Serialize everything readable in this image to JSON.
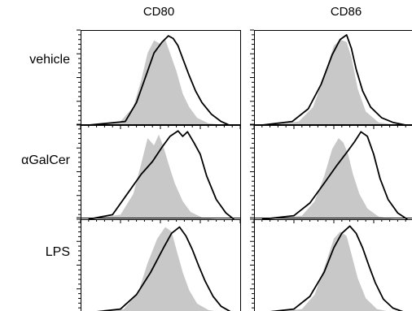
{
  "chart_data": {
    "type": "area",
    "columns": [
      "CD80",
      "CD86"
    ],
    "rows": [
      "vehicle",
      "αGalCer",
      "LPS"
    ],
    "colors": {
      "control_fill": "#c8c8c8",
      "treated_line": "#000000"
    },
    "grid": false,
    "x_domain": [
      0,
      1
    ],
    "y_domain": [
      0,
      1
    ],
    "panels": [
      {
        "row": "vehicle",
        "column": "CD80",
        "series": [
          {
            "style": "filled",
            "x": [
              0.05,
              0.25,
              0.33,
              0.38,
              0.42,
              0.46,
              0.5,
              0.53,
              0.56,
              0.6,
              0.64,
              0.68,
              0.73,
              0.8,
              0.9
            ],
            "y": [
              0,
              0.04,
              0.2,
              0.5,
              0.8,
              0.94,
              0.9,
              0.95,
              0.8,
              0.6,
              0.35,
              0.2,
              0.08,
              0.02,
              0
            ]
          },
          {
            "style": "outline",
            "x": [
              0.05,
              0.28,
              0.35,
              0.41,
              0.46,
              0.51,
              0.55,
              0.58,
              0.61,
              0.64,
              0.68,
              0.72,
              0.76,
              0.82,
              0.88,
              0.93
            ],
            "y": [
              0,
              0.04,
              0.25,
              0.55,
              0.8,
              0.92,
              0.99,
              0.96,
              0.88,
              0.74,
              0.55,
              0.38,
              0.25,
              0.12,
              0.04,
              0
            ]
          }
        ]
      },
      {
        "row": "vehicle",
        "column": "CD86",
        "series": [
          {
            "style": "filled",
            "x": [
              0.05,
              0.28,
              0.37,
              0.44,
              0.5,
              0.54,
              0.58,
              0.61,
              0.65,
              0.7,
              0.78,
              0.9
            ],
            "y": [
              0,
              0.04,
              0.2,
              0.55,
              0.88,
              0.95,
              0.92,
              0.75,
              0.4,
              0.15,
              0.03,
              0
            ]
          },
          {
            "style": "outline",
            "x": [
              0.05,
              0.24,
              0.34,
              0.42,
              0.49,
              0.54,
              0.58,
              0.61,
              0.64,
              0.68,
              0.73,
              0.8,
              0.87,
              0.95
            ],
            "y": [
              0,
              0.04,
              0.18,
              0.45,
              0.78,
              0.95,
              1.0,
              0.85,
              0.62,
              0.38,
              0.2,
              0.08,
              0.03,
              0
            ]
          }
        ]
      },
      {
        "row": "αGalCer",
        "column": "CD80",
        "series": [
          {
            "style": "filled",
            "x": [
              0.05,
              0.25,
              0.33,
              0.38,
              0.42,
              0.46,
              0.49,
              0.52,
              0.55,
              0.59,
              0.64,
              0.69,
              0.76,
              0.85
            ],
            "y": [
              0,
              0.05,
              0.28,
              0.62,
              0.9,
              0.82,
              0.94,
              0.8,
              0.62,
              0.4,
              0.2,
              0.08,
              0.02,
              0
            ]
          },
          {
            "style": "outline",
            "x": [
              0.05,
              0.2,
              0.3,
              0.38,
              0.45,
              0.51,
              0.56,
              0.61,
              0.64,
              0.67,
              0.71,
              0.75,
              0.79,
              0.85,
              0.91,
              0.96
            ],
            "y": [
              0,
              0.05,
              0.3,
              0.5,
              0.64,
              0.8,
              0.92,
              0.98,
              0.92,
              0.97,
              0.85,
              0.72,
              0.48,
              0.22,
              0.07,
              0
            ]
          }
        ]
      },
      {
        "row": "αGalCer",
        "column": "CD86",
        "series": [
          {
            "style": "filled",
            "x": [
              0.05,
              0.3,
              0.38,
              0.44,
              0.49,
              0.53,
              0.56,
              0.59,
              0.62,
              0.66,
              0.71,
              0.78,
              0.88
            ],
            "y": [
              0,
              0.04,
              0.2,
              0.48,
              0.78,
              0.9,
              0.85,
              0.72,
              0.5,
              0.28,
              0.12,
              0.03,
              0
            ]
          },
          {
            "style": "outline",
            "x": [
              0.05,
              0.25,
              0.35,
              0.44,
              0.52,
              0.58,
              0.63,
              0.67,
              0.71,
              0.75,
              0.79,
              0.84,
              0.9,
              0.96
            ],
            "y": [
              0,
              0.04,
              0.18,
              0.4,
              0.6,
              0.74,
              0.86,
              0.97,
              0.92,
              0.72,
              0.45,
              0.22,
              0.07,
              0
            ]
          }
        ]
      },
      {
        "row": "LPS",
        "column": "CD80",
        "series": [
          {
            "style": "filled",
            "x": [
              0.05,
              0.27,
              0.36,
              0.42,
              0.48,
              0.53,
              0.57,
              0.6,
              0.64,
              0.68,
              0.73,
              0.8,
              0.9
            ],
            "y": [
              0,
              0.04,
              0.22,
              0.55,
              0.82,
              0.95,
              0.9,
              0.7,
              0.45,
              0.25,
              0.1,
              0.03,
              0
            ]
          },
          {
            "style": "outline",
            "x": [
              0.05,
              0.25,
              0.35,
              0.44,
              0.52,
              0.57,
              0.62,
              0.66,
              0.7,
              0.74,
              0.78,
              0.83,
              0.88,
              0.95
            ],
            "y": [
              0,
              0.04,
              0.2,
              0.45,
              0.72,
              0.88,
              0.95,
              0.85,
              0.7,
              0.52,
              0.35,
              0.18,
              0.07,
              0
            ]
          }
        ]
      },
      {
        "row": "LPS",
        "column": "CD86",
        "series": [
          {
            "style": "filled",
            "x": [
              0.05,
              0.3,
              0.38,
              0.45,
              0.5,
              0.54,
              0.58,
              0.61,
              0.65,
              0.7,
              0.77,
              0.88
            ],
            "y": [
              0,
              0.04,
              0.2,
              0.55,
              0.82,
              0.9,
              0.85,
              0.65,
              0.38,
              0.16,
              0.04,
              0
            ]
          },
          {
            "style": "outline",
            "x": [
              0.05,
              0.25,
              0.35,
              0.44,
              0.5,
              0.55,
              0.6,
              0.64,
              0.68,
              0.72,
              0.76,
              0.81,
              0.87,
              0.95
            ],
            "y": [
              0,
              0.04,
              0.18,
              0.45,
              0.72,
              0.88,
              0.96,
              0.88,
              0.72,
              0.52,
              0.33,
              0.15,
              0.05,
              0
            ]
          }
        ]
      }
    ]
  }
}
